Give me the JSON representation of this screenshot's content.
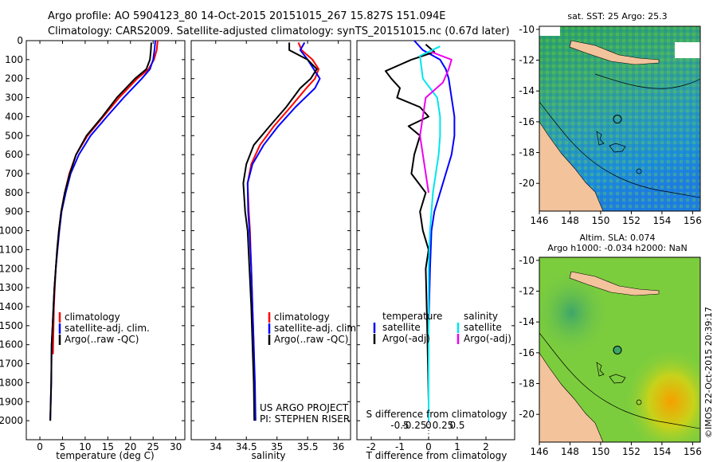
{
  "header": {
    "line1": "Argo profile: AO 5904123_80 14-Oct-2015 20151015_267 15.827S 151.094E",
    "line2": "Climatology: CARS2009. Satellite-adjusted climatology: synTS_20151015.nc (0.67d later)"
  },
  "side_stamp": "©IMOS 22-Oct-2015 20:39:17",
  "colors": {
    "red": "#ff0000",
    "blue": "#0000ff",
    "black": "#000000",
    "cyan": "#00e5ee",
    "magenta": "#ee00ee",
    "land": "#f3c39c"
  },
  "chart_data": [
    {
      "id": "temperature",
      "type": "line",
      "xlabel": "temperature (deg C)",
      "ylabel": "",
      "xlim": [
        -3,
        32
      ],
      "ylim": [
        0,
        2100
      ],
      "yreversed": true,
      "xticks": [
        0,
        5,
        10,
        15,
        20,
        25,
        30
      ],
      "yticks": [
        0,
        100,
        200,
        300,
        400,
        500,
        600,
        700,
        800,
        900,
        1000,
        1100,
        1200,
        1300,
        1400,
        1500,
        1600,
        1700,
        1800,
        1900,
        2000
      ],
      "legend": [
        "climatology",
        "satellite-adj. clim.",
        "Argo(..raw -QC)"
      ],
      "series": [
        {
          "name": "climatology",
          "color": "#ff0000",
          "x": [
            26.0,
            25.8,
            25.2,
            24.0,
            21.5,
            17.5,
            14.0,
            10.5,
            8.0,
            6.5,
            5.5,
            4.7,
            4.2,
            3.8,
            3.5,
            3.3,
            3.1,
            2.9
          ],
          "y": [
            0,
            50,
            100,
            150,
            200,
            300,
            400,
            500,
            600,
            700,
            800,
            900,
            1000,
            1100,
            1200,
            1300,
            1400,
            1650
          ]
        },
        {
          "name": "satellite-adj. clim.",
          "color": "#0000ff",
          "x": [
            25.5,
            25.3,
            25.0,
            24.3,
            22.5,
            18.5,
            14.8,
            11.2,
            8.6,
            6.8,
            5.7,
            4.8,
            4.3,
            3.9,
            3.5,
            3.2,
            3.0,
            2.8,
            2.6,
            2.5,
            2.4,
            2.3
          ],
          "y": [
            0,
            50,
            100,
            150,
            200,
            300,
            400,
            500,
            600,
            700,
            800,
            900,
            1000,
            1100,
            1200,
            1300,
            1400,
            1500,
            1600,
            1800,
            1900,
            2000
          ]
        },
        {
          "name": "Argo(..raw -QC)",
          "color": "#000000",
          "x": [
            24.6,
            24.5,
            24.3,
            23.5,
            21.0,
            17.0,
            13.8,
            10.3,
            8.0,
            6.6,
            5.5,
            4.7,
            4.2,
            3.8,
            3.5,
            3.2,
            3.0,
            2.8,
            2.6,
            2.5,
            2.4,
            2.3
          ],
          "y": [
            10,
            50,
            100,
            150,
            200,
            300,
            400,
            500,
            600,
            700,
            800,
            900,
            1000,
            1100,
            1200,
            1300,
            1400,
            1500,
            1600,
            1800,
            1900,
            2000
          ]
        }
      ]
    },
    {
      "id": "salinity",
      "type": "line",
      "xlabel": "salinity",
      "xlim": [
        33.6,
        36.2
      ],
      "ylim": [
        0,
        2100
      ],
      "yreversed": true,
      "xticks": [
        34,
        34.5,
        35,
        35.5,
        36
      ],
      "legend": [
        "climatology",
        "satellite-adj. clim.",
        "Argo(..raw -QC)"
      ],
      "annotation": [
        "US ARGO PROJECT",
        "PI: STEPHEN RISER"
      ],
      "series": [
        {
          "name": "climatology",
          "color": "#ff0000",
          "x": [
            35.35,
            35.4,
            35.58,
            35.68,
            35.62,
            35.48,
            35.22,
            34.95,
            34.72,
            34.58,
            34.52,
            34.54,
            34.56,
            34.58,
            34.6,
            34.62,
            34.63,
            34.64
          ],
          "y": [
            10,
            50,
            100,
            150,
            200,
            250,
            350,
            450,
            550,
            650,
            750,
            900,
            1000,
            1200,
            1400,
            1600,
            1800,
            2000
          ]
        },
        {
          "name": "satellite-adj. clim.",
          "color": "#0000ff",
          "x": [
            35.45,
            35.38,
            35.5,
            35.6,
            35.7,
            35.62,
            35.3,
            35.02,
            34.78,
            34.6,
            34.52,
            34.53,
            34.55,
            34.58,
            34.6,
            34.62,
            34.64,
            34.65
          ],
          "y": [
            10,
            50,
            100,
            150,
            200,
            250,
            350,
            450,
            550,
            650,
            750,
            900,
            1000,
            1200,
            1400,
            1600,
            1800,
            2000
          ]
        },
        {
          "name": "Argo(..raw -QC)",
          "color": "#000000",
          "x": [
            35.2,
            35.2,
            35.5,
            35.65,
            35.55,
            35.38,
            35.15,
            34.88,
            34.62,
            34.5,
            34.45,
            34.48,
            34.52,
            34.55,
            34.58,
            34.6,
            34.62,
            34.63
          ],
          "y": [
            10,
            50,
            100,
            150,
            200,
            250,
            350,
            450,
            550,
            650,
            750,
            900,
            1000,
            1200,
            1400,
            1600,
            1800,
            2000
          ]
        }
      ]
    },
    {
      "id": "difference",
      "type": "line",
      "xlabel_t": "T difference from climatology",
      "xlabel_s": "S difference from climatology",
      "xlim": [
        -2.5,
        3.0
      ],
      "ylim": [
        0,
        2100
      ],
      "yreversed": true,
      "xticks_t": [
        -2,
        -1,
        0,
        1,
        2
      ],
      "xticks_s_labels": [
        "-0.5",
        "-0.25",
        "0",
        "0.25",
        "0.5"
      ],
      "xticks_s_pos": [
        -1.0,
        -0.5,
        0,
        0.5,
        1.0
      ],
      "legend_headers": [
        "temperature",
        "salinity"
      ],
      "legend_t": [
        "satellite",
        "Argo(-adj)"
      ],
      "legend_s": [
        "satellite",
        "Argo(-adj)"
      ],
      "series": [
        {
          "name": "T satellite",
          "color": "#0000ff",
          "x": [
            -0.5,
            -0.2,
            0.4,
            0.6,
            0.7,
            0.8,
            0.9,
            0.9,
            0.8,
            0.6,
            0.4,
            0.2,
            0.1,
            0.05,
            0.0,
            0.0
          ],
          "y": [
            0,
            50,
            100,
            150,
            200,
            300,
            400,
            500,
            600,
            700,
            800,
            900,
            1000,
            1200,
            1500,
            2000
          ]
        },
        {
          "name": "T Argo(-adj)",
          "color": "#000000",
          "x": [
            -0.1,
            0.2,
            -0.6,
            -1.5,
            -1.3,
            -1.0,
            -1.1,
            -0.3,
            0.0,
            -0.7,
            -0.3,
            -0.5,
            -0.6,
            -0.1,
            -0.3,
            -0.2,
            0.0,
            -0.1,
            -0.05,
            0.0
          ],
          "y": [
            20,
            60,
            100,
            160,
            200,
            250,
            300,
            350,
            400,
            450,
            500,
            600,
            700,
            800,
            900,
            1000,
            1100,
            1200,
            1500,
            1900
          ]
        },
        {
          "name": "S satellite",
          "color": "#00e5ee",
          "x": [
            0.4,
            -0.3,
            -0.2,
            0.3,
            0.4,
            0.4,
            0.35,
            0.25,
            0.15,
            0.05,
            0.0,
            0.0
          ],
          "y": [
            30,
            80,
            200,
            300,
            400,
            500,
            600,
            700,
            800,
            1000,
            1200,
            2000
          ]
        },
        {
          "name": "S Argo(-adj)",
          "color": "#ee00ee",
          "x": [
            0.1,
            0.8,
            0.7,
            0.5,
            -0.1,
            -0.2,
            -0.3,
            -0.2,
            -0.1,
            0.0
          ],
          "y": [
            60,
            100,
            150,
            220,
            300,
            400,
            500,
            600,
            700,
            800
          ]
        }
      ]
    },
    {
      "id": "map-sst",
      "type": "heatmap",
      "title": "sat. SST: 25 Argo: 25.3",
      "xlim": [
        146,
        156.5
      ],
      "ylim": [
        -21.8,
        -9.8
      ],
      "xticks": [
        146,
        148,
        150,
        152,
        154,
        156
      ],
      "yticks": [
        -10,
        -12,
        -14,
        -16,
        -18,
        -20
      ],
      "marker": {
        "lon": 151.094,
        "lat": -15.827
      }
    },
    {
      "id": "map-sla",
      "type": "heatmap",
      "title1": "Altim. SLA: 0.074",
      "title2": "Argo h1000: -0.034 h2000: NaN",
      "xlim": [
        146,
        156.5
      ],
      "ylim": [
        -21.8,
        -9.8
      ],
      "xticks": [
        146,
        148,
        150,
        152,
        154,
        156
      ],
      "yticks": [
        -10,
        -12,
        -14,
        -16,
        -18,
        -20
      ],
      "marker": {
        "lon": 151.094,
        "lat": -15.827
      }
    }
  ]
}
